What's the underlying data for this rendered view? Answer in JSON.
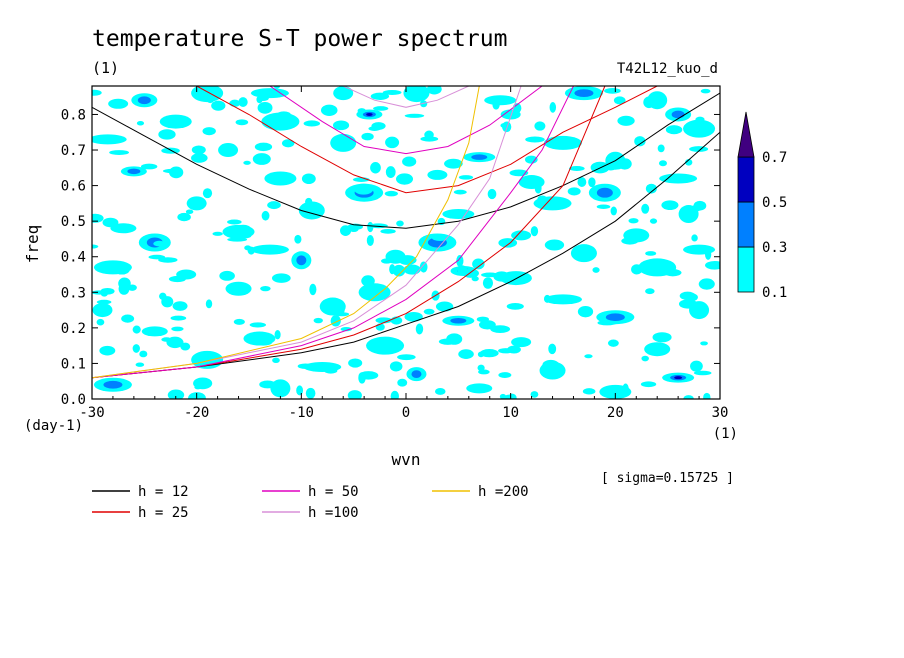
{
  "chart_data": {
    "type": "contour",
    "title": "temperature S-T power spectrum",
    "subtitle": "(1)",
    "run_label": "T42L12_kuo_d",
    "xlabel": "wvn",
    "ylabel": "freq",
    "x_unit_label": "(1)",
    "y_unit_label": "(day-1)",
    "sigma_label": "[ sigma=0.15725 ]",
    "xlim": [
      -30,
      30
    ],
    "ylim": [
      0.0,
      0.88
    ],
    "x_ticks": [
      -30,
      -20,
      -10,
      0,
      10,
      20,
      30
    ],
    "x_tick_labels": [
      "-30",
      "-20",
      "-10",
      "0",
      "10",
      "20",
      "30"
    ],
    "y_ticks": [
      0.0,
      0.1,
      0.2,
      0.3,
      0.4,
      0.5,
      0.6,
      0.7,
      0.8
    ],
    "y_tick_labels": [
      "0.0",
      "0.1",
      "0.2",
      "0.3",
      "0.4",
      "0.5",
      "0.6",
      "0.7",
      "0.8"
    ],
    "colorbar": {
      "levels": [
        0.1,
        0.3,
        0.5,
        0.7
      ],
      "level_labels": [
        "0.1",
        "0.3",
        "0.5",
        "0.7"
      ],
      "colors": [
        "#00ffff",
        "#0080ff",
        "#0000c0",
        "#400080"
      ]
    },
    "blobs": [
      {
        "x": -27.5,
        "y": 0.83,
        "level": 1
      },
      {
        "x": -25,
        "y": 0.84,
        "level": 2
      },
      {
        "x": -19,
        "y": 0.86,
        "level": 1
      },
      {
        "x": -13,
        "y": 0.86,
        "level": 1
      },
      {
        "x": -6,
        "y": 0.86,
        "level": 1
      },
      {
        "x": 1,
        "y": 0.86,
        "level": 1
      },
      {
        "x": 9,
        "y": 0.84,
        "level": 1
      },
      {
        "x": 17,
        "y": 0.86,
        "level": 2
      },
      {
        "x": 24,
        "y": 0.84,
        "level": 1
      },
      {
        "x": -3.5,
        "y": 0.8,
        "level": 3
      },
      {
        "x": -22,
        "y": 0.78,
        "level": 1
      },
      {
        "x": -12,
        "y": 0.78,
        "level": 1
      },
      {
        "x": 10,
        "y": 0.8,
        "level": 1
      },
      {
        "x": 26,
        "y": 0.8,
        "level": 2
      },
      {
        "x": 28,
        "y": 0.76,
        "level": 1
      },
      {
        "x": -28.5,
        "y": 0.73,
        "level": 1
      },
      {
        "x": -17,
        "y": 0.7,
        "level": 1
      },
      {
        "x": -6,
        "y": 0.72,
        "level": 1
      },
      {
        "x": 7,
        "y": 0.68,
        "level": 2
      },
      {
        "x": 15,
        "y": 0.72,
        "level": 1
      },
      {
        "x": 20,
        "y": 0.67,
        "level": 1
      },
      {
        "x": -26,
        "y": 0.64,
        "level": 2
      },
      {
        "x": -12,
        "y": 0.62,
        "level": 1
      },
      {
        "x": -4,
        "y": 0.58,
        "level": 2
      },
      {
        "x": 3,
        "y": 0.63,
        "level": 1
      },
      {
        "x": 12,
        "y": 0.61,
        "level": 1
      },
      {
        "x": 19,
        "y": 0.58,
        "level": 2
      },
      {
        "x": 26,
        "y": 0.62,
        "level": 1
      },
      {
        "x": -20,
        "y": 0.55,
        "level": 1
      },
      {
        "x": -9,
        "y": 0.53,
        "level": 1
      },
      {
        "x": 5,
        "y": 0.52,
        "level": 1
      },
      {
        "x": 14,
        "y": 0.55,
        "level": 1
      },
      {
        "x": 27,
        "y": 0.52,
        "level": 1
      },
      {
        "x": -27,
        "y": 0.48,
        "level": 1
      },
      {
        "x": -16,
        "y": 0.47,
        "level": 1
      },
      {
        "x": 3,
        "y": 0.44,
        "level": 2
      },
      {
        "x": 11,
        "y": 0.46,
        "level": 1
      },
      {
        "x": 22,
        "y": 0.46,
        "level": 1
      },
      {
        "x": -24,
        "y": 0.44,
        "level": 2
      },
      {
        "x": -13,
        "y": 0.42,
        "level": 1
      },
      {
        "x": -1,
        "y": 0.4,
        "level": 1
      },
      {
        "x": 17,
        "y": 0.41,
        "level": 1
      },
      {
        "x": 28,
        "y": 0.42,
        "level": 1
      },
      {
        "x": -28,
        "y": 0.37,
        "level": 1
      },
      {
        "x": -10,
        "y": 0.39,
        "level": 2
      },
      {
        "x": 5.5,
        "y": 0.36,
        "level": 2
      },
      {
        "x": 10.5,
        "y": 0.34,
        "level": 1
      },
      {
        "x": 24,
        "y": 0.37,
        "level": 1
      },
      {
        "x": -21,
        "y": 0.35,
        "level": 1
      },
      {
        "x": -16,
        "y": 0.31,
        "level": 1
      },
      {
        "x": -3,
        "y": 0.3,
        "level": 1
      },
      {
        "x": 15,
        "y": 0.28,
        "level": 1
      },
      {
        "x": -29,
        "y": 0.25,
        "level": 1
      },
      {
        "x": -7,
        "y": 0.26,
        "level": 1
      },
      {
        "x": 5,
        "y": 0.22,
        "level": 2
      },
      {
        "x": 20,
        "y": 0.23,
        "level": 2
      },
      {
        "x": 28,
        "y": 0.25,
        "level": 1
      },
      {
        "x": -24,
        "y": 0.19,
        "level": 1
      },
      {
        "x": -14,
        "y": 0.17,
        "level": 1
      },
      {
        "x": -2,
        "y": 0.15,
        "level": 1
      },
      {
        "x": 11,
        "y": 0.16,
        "level": 1
      },
      {
        "x": 24,
        "y": 0.14,
        "level": 1
      },
      {
        "x": -19,
        "y": 0.11,
        "level": 1
      },
      {
        "x": -8,
        "y": 0.09,
        "level": 1
      },
      {
        "x": 1,
        "y": 0.07,
        "level": 2
      },
      {
        "x": 14,
        "y": 0.08,
        "level": 1
      },
      {
        "x": 26,
        "y": 0.06,
        "level": 3
      },
      {
        "x": -28,
        "y": 0.04,
        "level": 2
      },
      {
        "x": -12,
        "y": 0.03,
        "level": 1
      },
      {
        "x": 7,
        "y": 0.03,
        "level": 1
      },
      {
        "x": 20,
        "y": 0.02,
        "level": 1
      }
    ],
    "legend": [
      {
        "label": "h = 12",
        "color": "#000000"
      },
      {
        "label": "h = 25",
        "color": "#e00000"
      },
      {
        "label": "h = 50",
        "color": "#e000c0"
      },
      {
        "label": "h =100",
        "color": "#d890d8"
      },
      {
        "label": "h =200",
        "color": "#f0c000"
      }
    ],
    "curves": [
      {
        "name": "h = 12",
        "color": "#000000",
        "type": "wig",
        "points": [
          [
            -30,
            0.82
          ],
          [
            -25,
            0.74
          ],
          [
            -20,
            0.66
          ],
          [
            -15,
            0.59
          ],
          [
            -10,
            0.53
          ],
          [
            -5,
            0.49
          ],
          [
            0,
            0.48
          ],
          [
            5,
            0.5
          ],
          [
            10,
            0.54
          ],
          [
            15,
            0.6
          ],
          [
            20,
            0.67
          ],
          [
            25,
            0.77
          ],
          [
            30,
            0.86
          ]
        ]
      },
      {
        "name": "h = 12",
        "color": "#000000",
        "type": "kelvin",
        "points": [
          [
            -30,
            0.06
          ],
          [
            -20,
            0.09
          ],
          [
            -10,
            0.13
          ],
          [
            -5,
            0.16
          ],
          [
            0,
            0.21
          ],
          [
            5,
            0.26
          ],
          [
            10,
            0.33
          ],
          [
            15,
            0.41
          ],
          [
            20,
            0.5
          ],
          [
            25,
            0.62
          ],
          [
            30,
            0.75
          ]
        ]
      },
      {
        "name": "h = 25",
        "color": "#e00000",
        "type": "wig",
        "points": [
          [
            -20,
            0.88
          ],
          [
            -15,
            0.8
          ],
          [
            -10,
            0.71
          ],
          [
            -5,
            0.63
          ],
          [
            0,
            0.58
          ],
          [
            5,
            0.6
          ],
          [
            10,
            0.66
          ],
          [
            15,
            0.75
          ],
          [
            20,
            0.82
          ],
          [
            24,
            0.88
          ]
        ]
      },
      {
        "name": "h = 25",
        "color": "#e00000",
        "type": "kelvin",
        "points": [
          [
            -30,
            0.06
          ],
          [
            -20,
            0.09
          ],
          [
            -10,
            0.14
          ],
          [
            -5,
            0.18
          ],
          [
            0,
            0.24
          ],
          [
            5,
            0.33
          ],
          [
            10,
            0.44
          ],
          [
            15,
            0.6
          ],
          [
            19,
            0.88
          ]
        ]
      },
      {
        "name": "h = 50",
        "color": "#e000c0",
        "type": "wig",
        "points": [
          [
            -13,
            0.88
          ],
          [
            -8,
            0.78
          ],
          [
            -4,
            0.71
          ],
          [
            0,
            0.69
          ],
          [
            4,
            0.71
          ],
          [
            8,
            0.77
          ],
          [
            13,
            0.88
          ]
        ]
      },
      {
        "name": "h = 50",
        "color": "#e000c0",
        "type": "kelvin",
        "points": [
          [
            -30,
            0.06
          ],
          [
            -20,
            0.09
          ],
          [
            -10,
            0.15
          ],
          [
            -5,
            0.2
          ],
          [
            0,
            0.28
          ],
          [
            5,
            0.39
          ],
          [
            10,
            0.58
          ],
          [
            13,
            0.7
          ],
          [
            16,
            0.88
          ]
        ]
      },
      {
        "name": "h =100",
        "color": "#d890d8",
        "type": "wig",
        "points": [
          [
            -6,
            0.88
          ],
          [
            -3,
            0.84
          ],
          [
            0,
            0.82
          ],
          [
            3,
            0.84
          ],
          [
            6,
            0.88
          ]
        ]
      },
      {
        "name": "h =100",
        "color": "#d890d8",
        "type": "kelvin",
        "points": [
          [
            -30,
            0.06
          ],
          [
            -20,
            0.1
          ],
          [
            -10,
            0.16
          ],
          [
            -5,
            0.22
          ],
          [
            0,
            0.32
          ],
          [
            5,
            0.49
          ],
          [
            8,
            0.62
          ],
          [
            11,
            0.88
          ]
        ]
      },
      {
        "name": "h =200",
        "color": "#f0c000",
        "type": "kelvin",
        "points": [
          [
            -30,
            0.06
          ],
          [
            -20,
            0.1
          ],
          [
            -10,
            0.17
          ],
          [
            -5,
            0.24
          ],
          [
            -2,
            0.31
          ],
          [
            1,
            0.4
          ],
          [
            4,
            0.56
          ],
          [
            6,
            0.72
          ],
          [
            7,
            0.88
          ]
        ]
      }
    ]
  }
}
